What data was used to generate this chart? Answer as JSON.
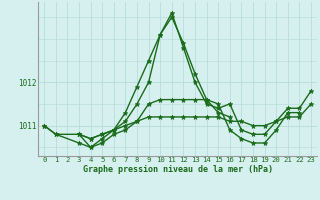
{
  "x": [
    0,
    1,
    2,
    3,
    4,
    5,
    6,
    7,
    8,
    9,
    10,
    11,
    12,
    13,
    14,
    15,
    16,
    17,
    18,
    19,
    20,
    21,
    22,
    23
  ],
  "line1": [
    1011.0,
    1010.8,
    null,
    1010.8,
    1010.7,
    1010.8,
    1010.9,
    1011.0,
    1011.1,
    1011.2,
    1011.2,
    1011.2,
    1011.2,
    1011.2,
    1011.2,
    1011.2,
    1011.1,
    1011.1,
    1011.0,
    1011.0,
    1011.1,
    1011.2,
    1011.2,
    1011.5
  ],
  "line2": [
    1011.0,
    1010.8,
    null,
    1010.6,
    1010.5,
    1010.7,
    1010.9,
    1011.3,
    1011.9,
    1012.5,
    1013.1,
    1013.5,
    1012.9,
    1012.2,
    1011.6,
    1011.3,
    1011.2,
    null,
    null,
    null,
    null,
    null,
    null,
    null
  ],
  "line3": [
    null,
    null,
    null,
    1010.8,
    1010.7,
    1010.8,
    1010.9,
    1011.1,
    1011.5,
    1012.0,
    1013.1,
    1013.6,
    1012.8,
    1012.0,
    1011.5,
    1011.4,
    1011.5,
    1010.9,
    1010.8,
    1010.8,
    1011.1,
    1011.4,
    1011.4,
    1011.8
  ],
  "line4": [
    null,
    null,
    null,
    1010.8,
    1010.5,
    1010.6,
    1010.8,
    1010.9,
    1011.1,
    1011.5,
    1011.6,
    1011.6,
    1011.6,
    1011.6,
    1011.6,
    1011.5,
    1010.9,
    1010.7,
    1010.6,
    1010.6,
    1010.9,
    1011.3,
    1011.3,
    null
  ],
  "ylim": [
    1010.3,
    1013.85
  ],
  "yticks": [
    1011,
    1012
  ],
  "ytick_labels": [
    "1011",
    "1012"
  ],
  "xlabel": "Graphe pression niveau de la mer (hPa)",
  "xticks": [
    0,
    1,
    2,
    3,
    4,
    5,
    6,
    7,
    8,
    9,
    10,
    11,
    12,
    13,
    14,
    15,
    16,
    17,
    18,
    19,
    20,
    21,
    22,
    23
  ],
  "line_color": "#1a6b1a",
  "bg_color": "#d6f0f0",
  "grid_color": "#b8dede",
  "marker": "*",
  "markersize": 3.5,
  "linewidth": 1.0,
  "xlabel_fontsize": 6.0,
  "tick_fontsize": 5.2
}
